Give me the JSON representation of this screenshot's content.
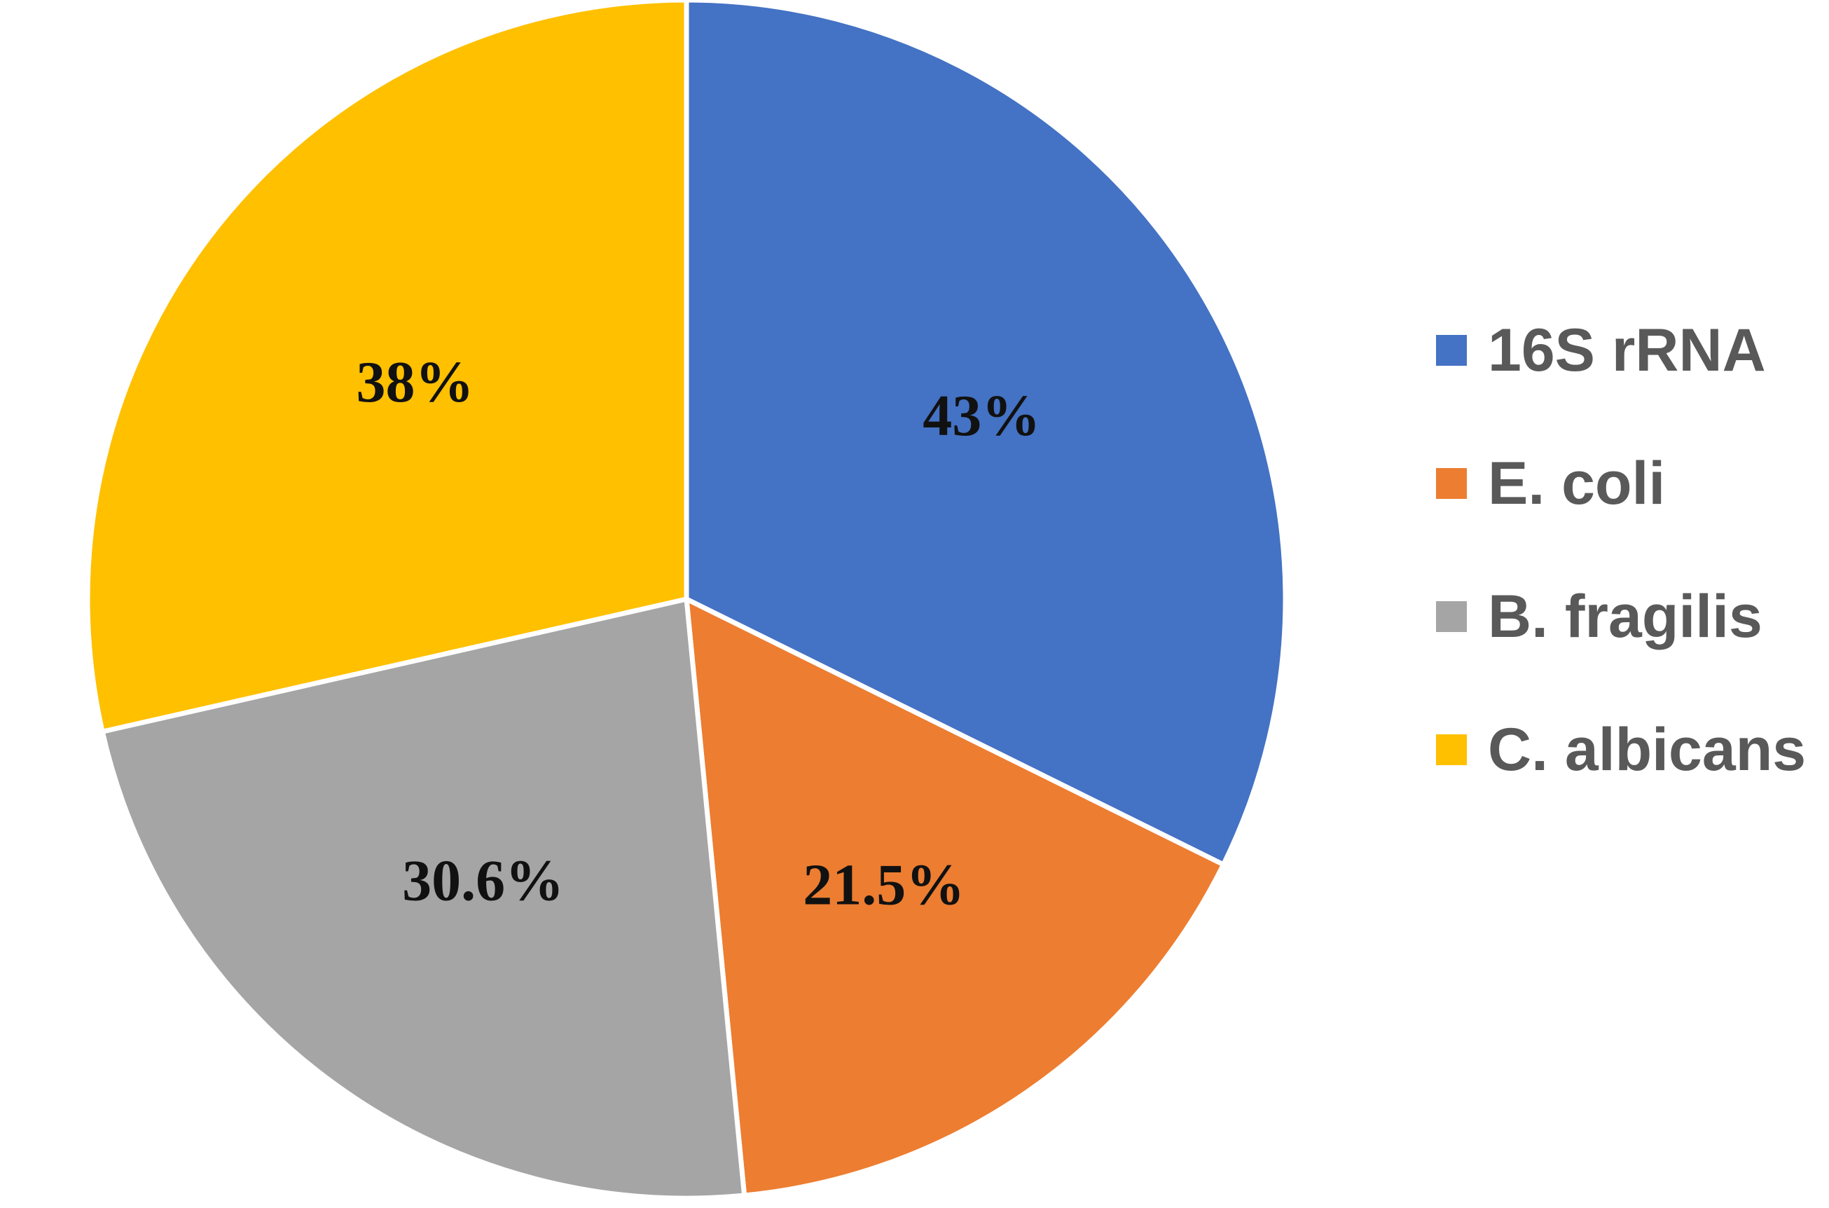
{
  "chart_data": {
    "type": "pie",
    "title": "",
    "start_angle_deg": 0,
    "direction": "clockwise",
    "legend_position": "right",
    "slices": [
      {
        "name": "16S rRNA",
        "value": 43,
        "label": "43%",
        "color": "#4472C4"
      },
      {
        "name": "E. coli",
        "value": 21.5,
        "label": "21.5%",
        "color": "#ED7D31"
      },
      {
        "name": "B. fragilis",
        "value": 30.6,
        "label": "30.6%",
        "color": "#A5A5A5"
      },
      {
        "name": "C. albicans",
        "value": 38,
        "label": "38%",
        "color": "#FFC000"
      }
    ]
  }
}
